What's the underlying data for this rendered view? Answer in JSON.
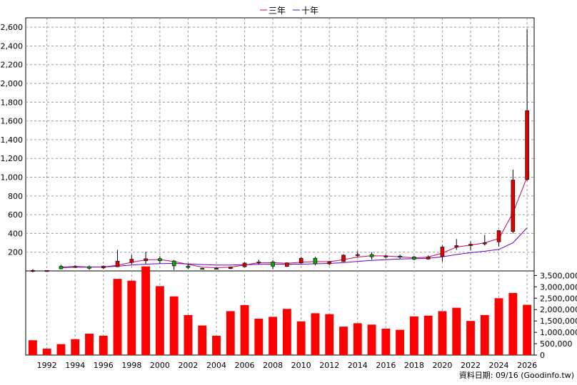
{
  "legend": [
    {
      "label": "三年",
      "color": "#cc0066"
    },
    {
      "label": "十年",
      "color": "#6600cc"
    }
  ],
  "footer": "資料日期: 09/16  (Goodinfo.tw)",
  "colors": {
    "up": "#dd0000",
    "down": "#00aa00",
    "volume": "#ff0000",
    "grid": "#9a9a9a"
  },
  "chart_data": [
    {
      "type": "candlestick",
      "ylim": [
        0,
        2700
      ],
      "yticks": [
        "200",
        "400",
        "600",
        "800",
        "1,000",
        "1,200",
        "1,400",
        "1,600",
        "1,800",
        "2,000",
        "2,200",
        "2,400",
        "2,600"
      ],
      "x_labels": [
        "1992",
        "1994",
        "1996",
        "1998",
        "2000",
        "2002",
        "2004",
        "2006",
        "2008",
        "2010",
        "2012",
        "2014",
        "2016",
        "2018",
        "2020",
        "2022",
        "2024",
        "2026"
      ],
      "candles": [
        {
          "year": 1991,
          "open": 6,
          "high": 20,
          "low": -15,
          "close": 6
        },
        {
          "year": 1992,
          "open": 5,
          "high": 8,
          "low": 2,
          "close": 5
        },
        {
          "year": 1993,
          "open": 50,
          "high": 65,
          "low": 18,
          "close": 22
        },
        {
          "year": 1994,
          "open": 44,
          "high": 62,
          "low": 32,
          "close": 48
        },
        {
          "year": 1995,
          "open": 45,
          "high": 58,
          "low": 12,
          "close": 28
        },
        {
          "year": 1996,
          "open": 32,
          "high": 58,
          "low": 20,
          "close": 50
        },
        {
          "year": 1997,
          "open": 45,
          "high": 225,
          "low": 40,
          "close": 105
        },
        {
          "year": 1998,
          "open": 90,
          "high": 170,
          "low": 70,
          "close": 125
        },
        {
          "year": 1999,
          "open": 108,
          "high": 205,
          "low": 75,
          "close": 130
        },
        {
          "year": 2000,
          "open": 132,
          "high": 158,
          "low": 80,
          "close": 108
        },
        {
          "year": 2001,
          "open": 106,
          "high": 118,
          "low": 10,
          "close": 54
        },
        {
          "year": 2002,
          "open": 52,
          "high": 70,
          "low": 18,
          "close": 36
        },
        {
          "year": 2003,
          "open": 28,
          "high": 34,
          "low": 20,
          "close": 24
        },
        {
          "year": 2004,
          "open": 28,
          "high": 34,
          "low": 18,
          "close": 26
        },
        {
          "year": 2005,
          "open": 25,
          "high": 46,
          "low": 20,
          "close": 42
        },
        {
          "year": 2006,
          "open": 44,
          "high": 92,
          "low": 40,
          "close": 84
        },
        {
          "year": 2007,
          "open": 86,
          "high": 120,
          "low": 70,
          "close": 95
        },
        {
          "year": 2008,
          "open": 96,
          "high": 115,
          "low": 18,
          "close": 50
        },
        {
          "year": 2009,
          "open": 48,
          "high": 92,
          "low": 40,
          "close": 86
        },
        {
          "year": 2010,
          "open": 85,
          "high": 150,
          "low": 78,
          "close": 135
        },
        {
          "year": 2011,
          "open": 135,
          "high": 152,
          "low": 60,
          "close": 76
        },
        {
          "year": 2012,
          "open": 76,
          "high": 108,
          "low": 62,
          "close": 100
        },
        {
          "year": 2013,
          "open": 100,
          "high": 178,
          "low": 95,
          "close": 168
        },
        {
          "year": 2014,
          "open": 170,
          "high": 210,
          "low": 150,
          "close": 175
        },
        {
          "year": 2015,
          "open": 175,
          "high": 200,
          "low": 120,
          "close": 150
        },
        {
          "year": 2016,
          "open": 152,
          "high": 170,
          "low": 140,
          "close": 160
        },
        {
          "year": 2017,
          "open": 158,
          "high": 175,
          "low": 130,
          "close": 150
        },
        {
          "year": 2018,
          "open": 150,
          "high": 160,
          "low": 112,
          "close": 125
        },
        {
          "year": 2019,
          "open": 127,
          "high": 165,
          "low": 120,
          "close": 150
        },
        {
          "year": 2020,
          "open": 155,
          "high": 270,
          "low": 100,
          "close": 255
        },
        {
          "year": 2021,
          "open": 255,
          "high": 340,
          "low": 225,
          "close": 270
        },
        {
          "year": 2022,
          "open": 270,
          "high": 315,
          "low": 220,
          "close": 285
        },
        {
          "year": 2023,
          "open": 287,
          "high": 385,
          "low": 270,
          "close": 300
        },
        {
          "year": 2024,
          "open": 310,
          "high": 435,
          "low": 260,
          "close": 430
        },
        {
          "year": 2025,
          "open": 420,
          "high": 1080,
          "low": 400,
          "close": 970
        },
        {
          "year": 2026,
          "open": 975,
          "high": 2580,
          "low": 960,
          "close": 1710
        }
      ],
      "series": [
        {
          "name": "三年",
          "x": [
            1993,
            1994,
            1995,
            1996,
            1997,
            1998,
            1999,
            2000,
            2001,
            2002,
            2003,
            2004,
            2005,
            2006,
            2007,
            2008,
            2009,
            2010,
            2011,
            2012,
            2013,
            2014,
            2015,
            2016,
            2017,
            2018,
            2019,
            2020,
            2021,
            2022,
            2023,
            2024,
            2025,
            2026
          ],
          "values": [
            40,
            48,
            42,
            42,
            60,
            92,
            118,
            122,
            100,
            70,
            40,
            34,
            40,
            62,
            88,
            88,
            82,
            92,
            100,
            98,
            120,
            148,
            162,
            160,
            150,
            140,
            148,
            190,
            255,
            275,
            300,
            345,
            620,
            1000
          ]
        },
        {
          "name": "十年",
          "x": [
            1993,
            1994,
            1995,
            1996,
            1997,
            1998,
            1999,
            2000,
            2001,
            2002,
            2003,
            2004,
            2005,
            2006,
            2007,
            2008,
            2009,
            2010,
            2011,
            2012,
            2013,
            2014,
            2015,
            2016,
            2017,
            2018,
            2019,
            2020,
            2021,
            2022,
            2023,
            2024,
            2025,
            2026
          ],
          "values": [
            35,
            40,
            40,
            42,
            50,
            62,
            72,
            78,
            80,
            75,
            68,
            62,
            62,
            66,
            70,
            72,
            72,
            72,
            76,
            80,
            88,
            102,
            112,
            120,
            128,
            130,
            135,
            150,
            175,
            195,
            210,
            230,
            300,
            460
          ]
        }
      ]
    },
    {
      "type": "bar",
      "ylim": [
        0,
        3700000
      ],
      "yticks": [
        "0",
        "500,000",
        "1,000,000",
        "1,500,000",
        "2,000,000",
        "2,500,000",
        "3,000,000",
        "3,500,000"
      ],
      "categories": [
        1991,
        1992,
        1993,
        1994,
        1995,
        1996,
        1997,
        1998,
        1999,
        2000,
        2001,
        2002,
        2003,
        2004,
        2005,
        2006,
        2007,
        2008,
        2009,
        2010,
        2011,
        2012,
        2013,
        2014,
        2015,
        2016,
        2017,
        2018,
        2019,
        2020,
        2021,
        2022,
        2023,
        2024,
        2025,
        2026
      ],
      "values": [
        650000,
        280000,
        480000,
        700000,
        940000,
        850000,
        3350000,
        3270000,
        3900000,
        3030000,
        2580000,
        1760000,
        1300000,
        850000,
        1930000,
        2200000,
        1600000,
        1680000,
        2030000,
        1480000,
        1840000,
        1800000,
        1250000,
        1400000,
        1340000,
        1160000,
        1110000,
        1700000,
        1730000,
        1930000,
        2080000,
        1500000,
        1760000,
        2500000,
        2730000,
        2210000
      ]
    }
  ]
}
